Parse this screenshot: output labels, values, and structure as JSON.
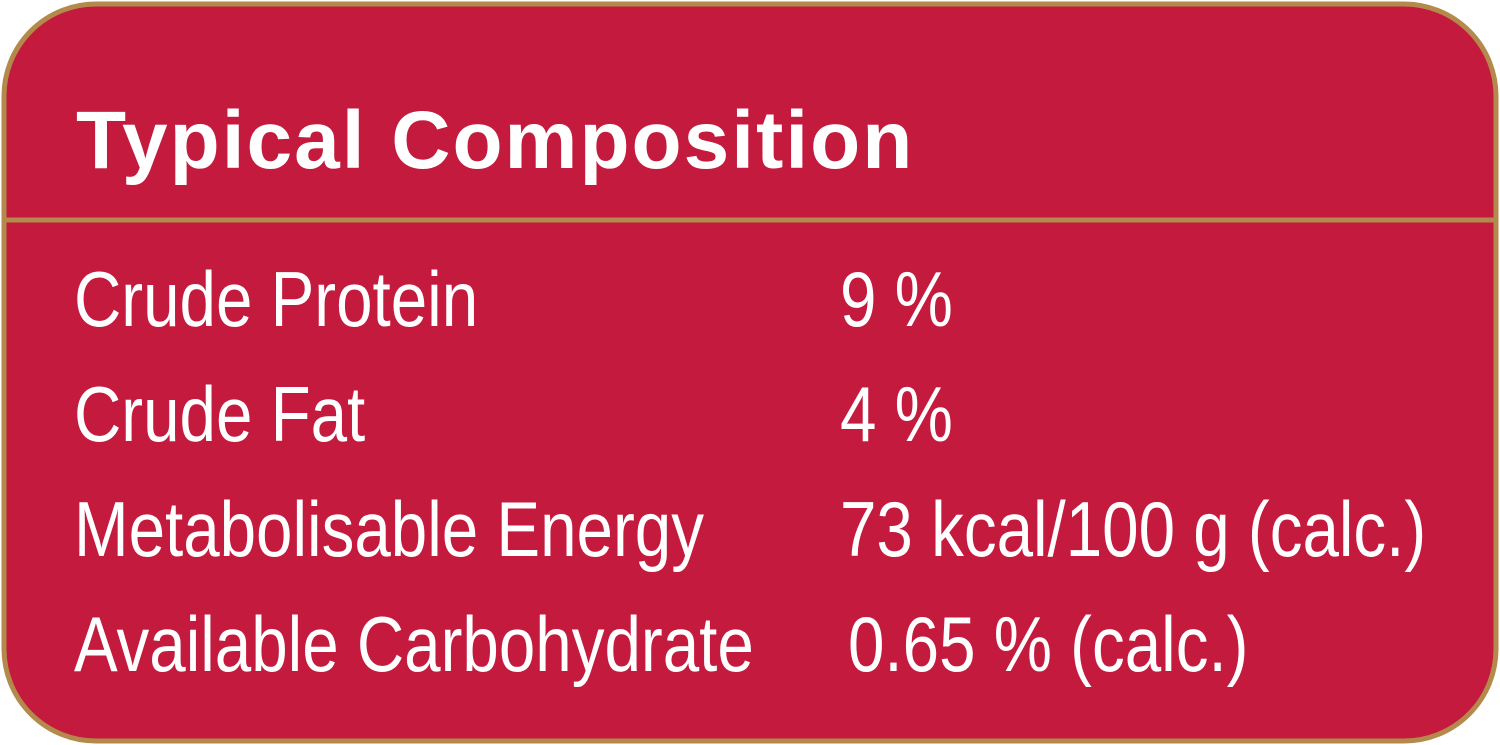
{
  "header": {
    "title": "Typical Composition"
  },
  "table": {
    "rows": [
      [
        "Crude Protein",
        "9 %"
      ],
      [
        "Crude Fat",
        "4 %"
      ],
      [
        "Metabolisable Energy",
        "73 kcal/100 g (calc.)"
      ],
      [
        "Available Carbohydrate",
        "0.65 % (calc.)"
      ]
    ]
  }
}
